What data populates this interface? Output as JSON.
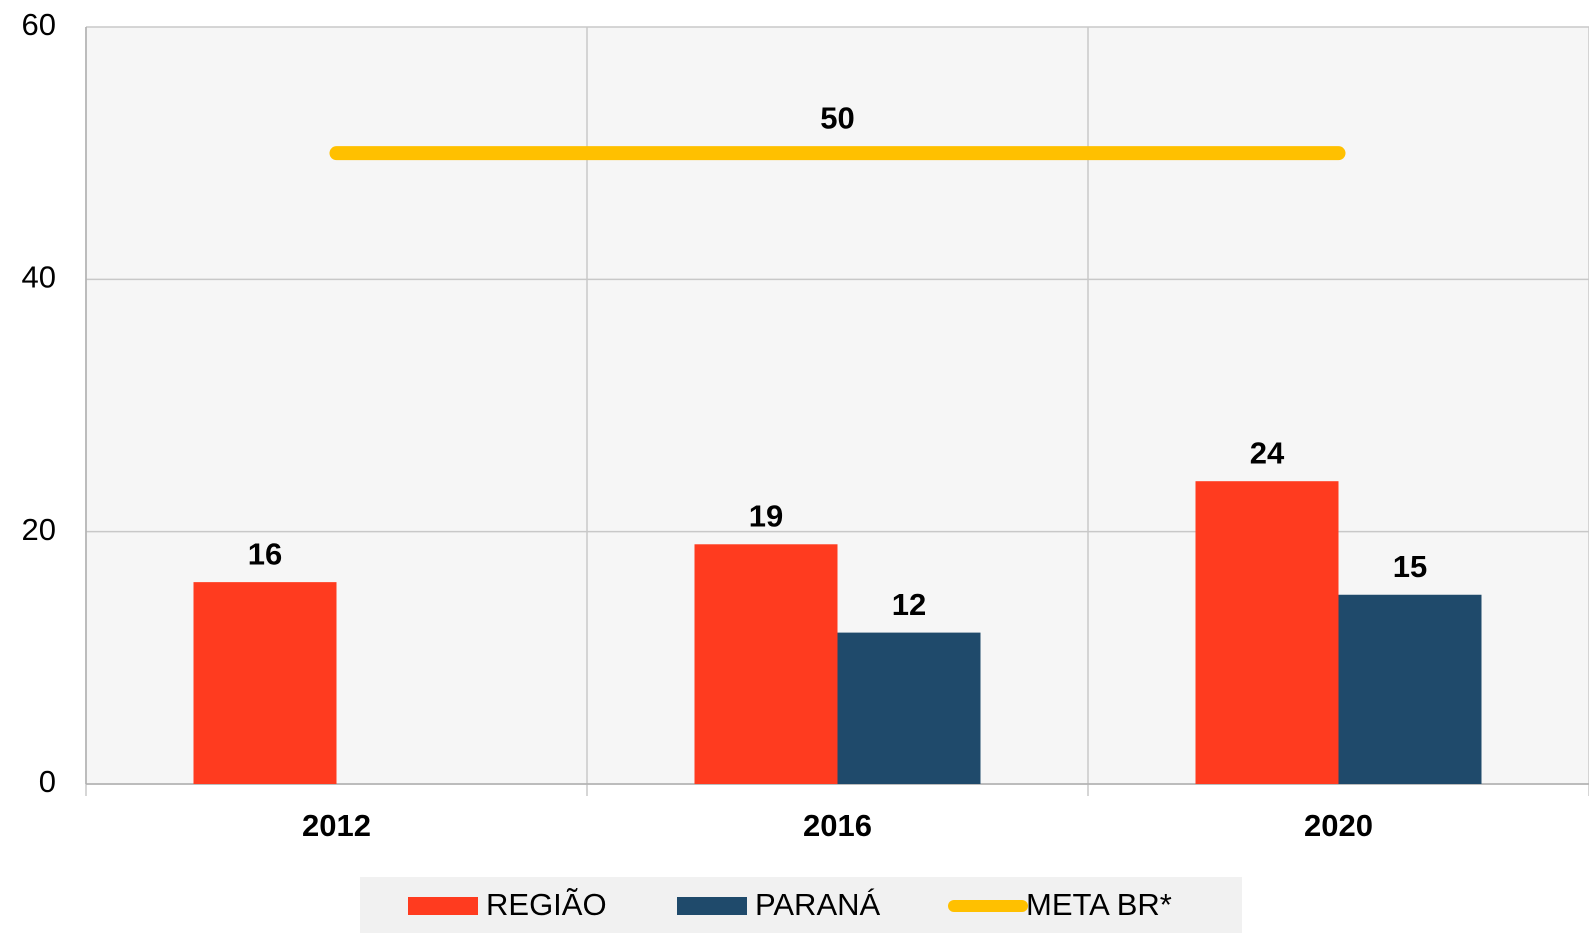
{
  "chart_data": {
    "type": "bar",
    "categories": [
      "2012",
      "2016",
      "2020"
    ],
    "series": [
      {
        "name": "REGIÃO",
        "color": "#ff3b1f",
        "values": [
          16,
          19,
          24
        ]
      },
      {
        "name": "PARANÁ",
        "color": "#1f4a6b",
        "values": [
          null,
          12,
          15
        ]
      },
      {
        "name": "META BR*",
        "color": "#ffc000",
        "type": "line",
        "values": [
          50,
          50,
          50
        ]
      }
    ],
    "ylim": [
      0,
      60
    ],
    "yticks": [
      0,
      20,
      40,
      60
    ],
    "grid": true,
    "legend": "bottom"
  }
}
